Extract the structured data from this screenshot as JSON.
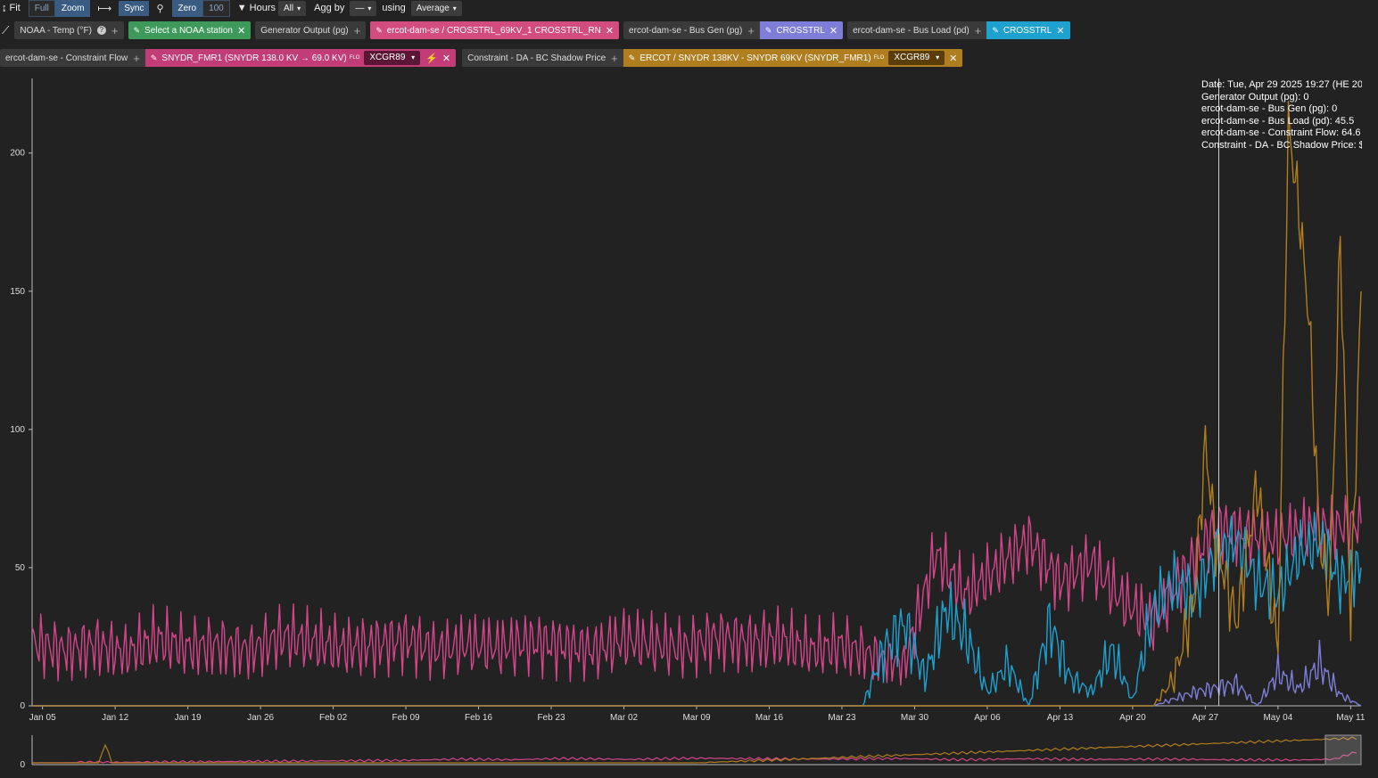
{
  "toolbar": {
    "fit_label": "Fit",
    "full_label": "Full",
    "zoom_label": "Zoom",
    "sync_label": "Sync",
    "zero_label": "Zero",
    "zero_value": "100",
    "hours_label": "Hours",
    "hours_value": "All",
    "agg_label": "Agg by",
    "agg_value": "—",
    "using_label": "using",
    "using_value": "Average",
    "icons": [
      "fit-icon",
      "range-icon",
      "pin-icon",
      "filter-icon",
      "chart-line-icon"
    ]
  },
  "series_row1": [
    {
      "label": "NOAA - Temp (°F)",
      "style": "gray",
      "help": "?",
      "plus": "+"
    },
    {
      "label": "Select a NOAA station",
      "style": "green",
      "edit": true,
      "close": true
    },
    {
      "label": "Generator Output (pg)",
      "style": "gray",
      "plus": "+"
    },
    {
      "label": "ercot-dam-se / CROSSTRL_69KV_1 CROSSTRL_RN",
      "style": "pink",
      "close": true
    },
    {
      "label": "ercot-dam-se - Bus Gen (pg)",
      "style": "gray",
      "plus": "+"
    },
    {
      "label": "CROSSTRL",
      "style": "purple",
      "edit": true,
      "close": true
    },
    {
      "label": "ercot-dam-se - Bus Load (pd)",
      "style": "gray",
      "plus": "+"
    },
    {
      "label": "CROSSTRL",
      "style": "cyan",
      "edit": true,
      "close": true
    }
  ],
  "series_row2": {
    "flow_label": "ercot-dam-se - Constraint Flow",
    "flow_chip": "SNYDR_FMR1 (SNYDR 138.0 KV → 69.0 KV)",
    "flow_tag": "FLO",
    "flow_select": "XCGR89",
    "shadow_label": "Constraint - DA - BC Shadow Price",
    "shadow_chip": "ERCOT / SNYDR 138KV - SNYDR 69KV (SNYDR_FMR1)",
    "shadow_tag": "FLO",
    "shadow_select": "XCGR89"
  },
  "tooltip": [
    "Date: Tue, Apr 29 2025 19:27 (HE 20",
    "Generator Output (pg): 0",
    "ercot-dam-se - Bus Gen (pg): 0",
    "ercot-dam-se - Bus Load (pd): 45.5",
    "ercot-dam-se - Constraint Flow: 64.6",
    "Constraint - DA - BC Shadow Price: $"
  ],
  "colors": {
    "background": "#222222",
    "flow": "#d4458a",
    "load": "#1ea1cf",
    "gen": "#7e7ed8",
    "shadow": "#b07d1f"
  },
  "chart_data": {
    "type": "line",
    "x_ticks": [
      "Jan 05",
      "Jan 12",
      "Jan 19",
      "Jan 26",
      "Feb 02",
      "Feb 09",
      "Feb 16",
      "Feb 23",
      "Mar 02",
      "Mar 09",
      "Mar 16",
      "Mar 23",
      "Mar 30",
      "Apr 06",
      "Apr 13",
      "Apr 20",
      "Apr 27",
      "May 04",
      "May 11"
    ],
    "y_ticks": [
      0,
      50,
      100,
      150,
      200
    ],
    "ylim": [
      0,
      227
    ],
    "xlim_days": [
      0,
      128
    ],
    "series": [
      {
        "name": "ercot-dam-se - Constraint Flow",
        "color": "#d4458a",
        "x": [
          0,
          3,
          6,
          9,
          12,
          15,
          18,
          21,
          24,
          27,
          30,
          33,
          36,
          39,
          42,
          45,
          48,
          51,
          54,
          57,
          60,
          63,
          66,
          69,
          72,
          75,
          78,
          81,
          84,
          87,
          90,
          93,
          96,
          99,
          102,
          105,
          108,
          111,
          114,
          117,
          120,
          123,
          126,
          128
        ],
        "y": [
          23,
          20,
          22,
          19,
          24,
          21,
          22,
          20,
          25,
          23,
          21,
          22,
          24,
          20,
          22,
          21,
          23,
          22,
          20,
          24,
          22,
          21,
          25,
          23,
          24,
          20,
          22,
          18,
          15,
          55,
          40,
          50,
          60,
          45,
          52,
          38,
          30,
          48,
          65,
          62,
          60,
          64,
          65,
          66
        ]
      },
      {
        "name": "ercot-dam-se - Bus Load (pd)",
        "color": "#1ea1cf",
        "x": [
          0,
          80,
          82,
          84,
          86,
          88,
          90,
          92,
          94,
          96,
          98,
          100,
          102,
          104,
          106,
          108,
          110,
          112,
          114,
          116,
          118,
          120,
          122,
          124,
          126,
          128
        ],
        "y": [
          0,
          0,
          20,
          30,
          10,
          35,
          25,
          5,
          15,
          0,
          30,
          10,
          5,
          20,
          2,
          35,
          45,
          40,
          55,
          60,
          45,
          40,
          55,
          60,
          45,
          50
        ]
      },
      {
        "name": "ercot-dam-se - Bus Gen (pg)",
        "color": "#7e7ed8",
        "x": [
          0,
          108,
          112,
          116,
          118,
          120,
          122,
          124,
          126,
          128
        ],
        "y": [
          0,
          0,
          5,
          8,
          0,
          12,
          6,
          15,
          4,
          0
        ]
      },
      {
        "name": "Constraint - DA - BC Shadow Price",
        "color": "#b07d1f",
        "x": [
          0,
          108,
          110,
          112,
          113,
          114,
          116,
          118,
          120,
          121,
          122,
          123,
          124,
          125,
          126,
          127,
          128
        ],
        "y": [
          0,
          0,
          10,
          40,
          95,
          60,
          30,
          80,
          20,
          210,
          180,
          140,
          60,
          40,
          170,
          30,
          150
        ]
      }
    ]
  },
  "overview_data": {
    "type": "line",
    "y_ticks": [
      0
    ],
    "series": [
      {
        "name": "ercot-dam-se - Constraint Flow",
        "color": "#d4458a",
        "x": [
          0,
          0.28,
          0.32,
          0.36,
          0.4,
          0.45,
          0.5,
          0.55,
          0.6,
          0.65,
          0.7,
          0.75,
          0.8,
          0.85,
          0.9,
          0.95,
          0.98,
          1.0
        ],
        "y": [
          0,
          8,
          12,
          10,
          14,
          11,
          15,
          13,
          12,
          14,
          10,
          13,
          11,
          12,
          10,
          9,
          12,
          40
        ]
      },
      {
        "name": "Constraint - DA - BC Shadow Price",
        "color": "#b07d1f",
        "x": [
          0,
          0.05,
          0.055,
          0.06,
          0.5,
          1.0
        ],
        "y": [
          0,
          0,
          60,
          0,
          0,
          80
        ]
      }
    ]
  }
}
